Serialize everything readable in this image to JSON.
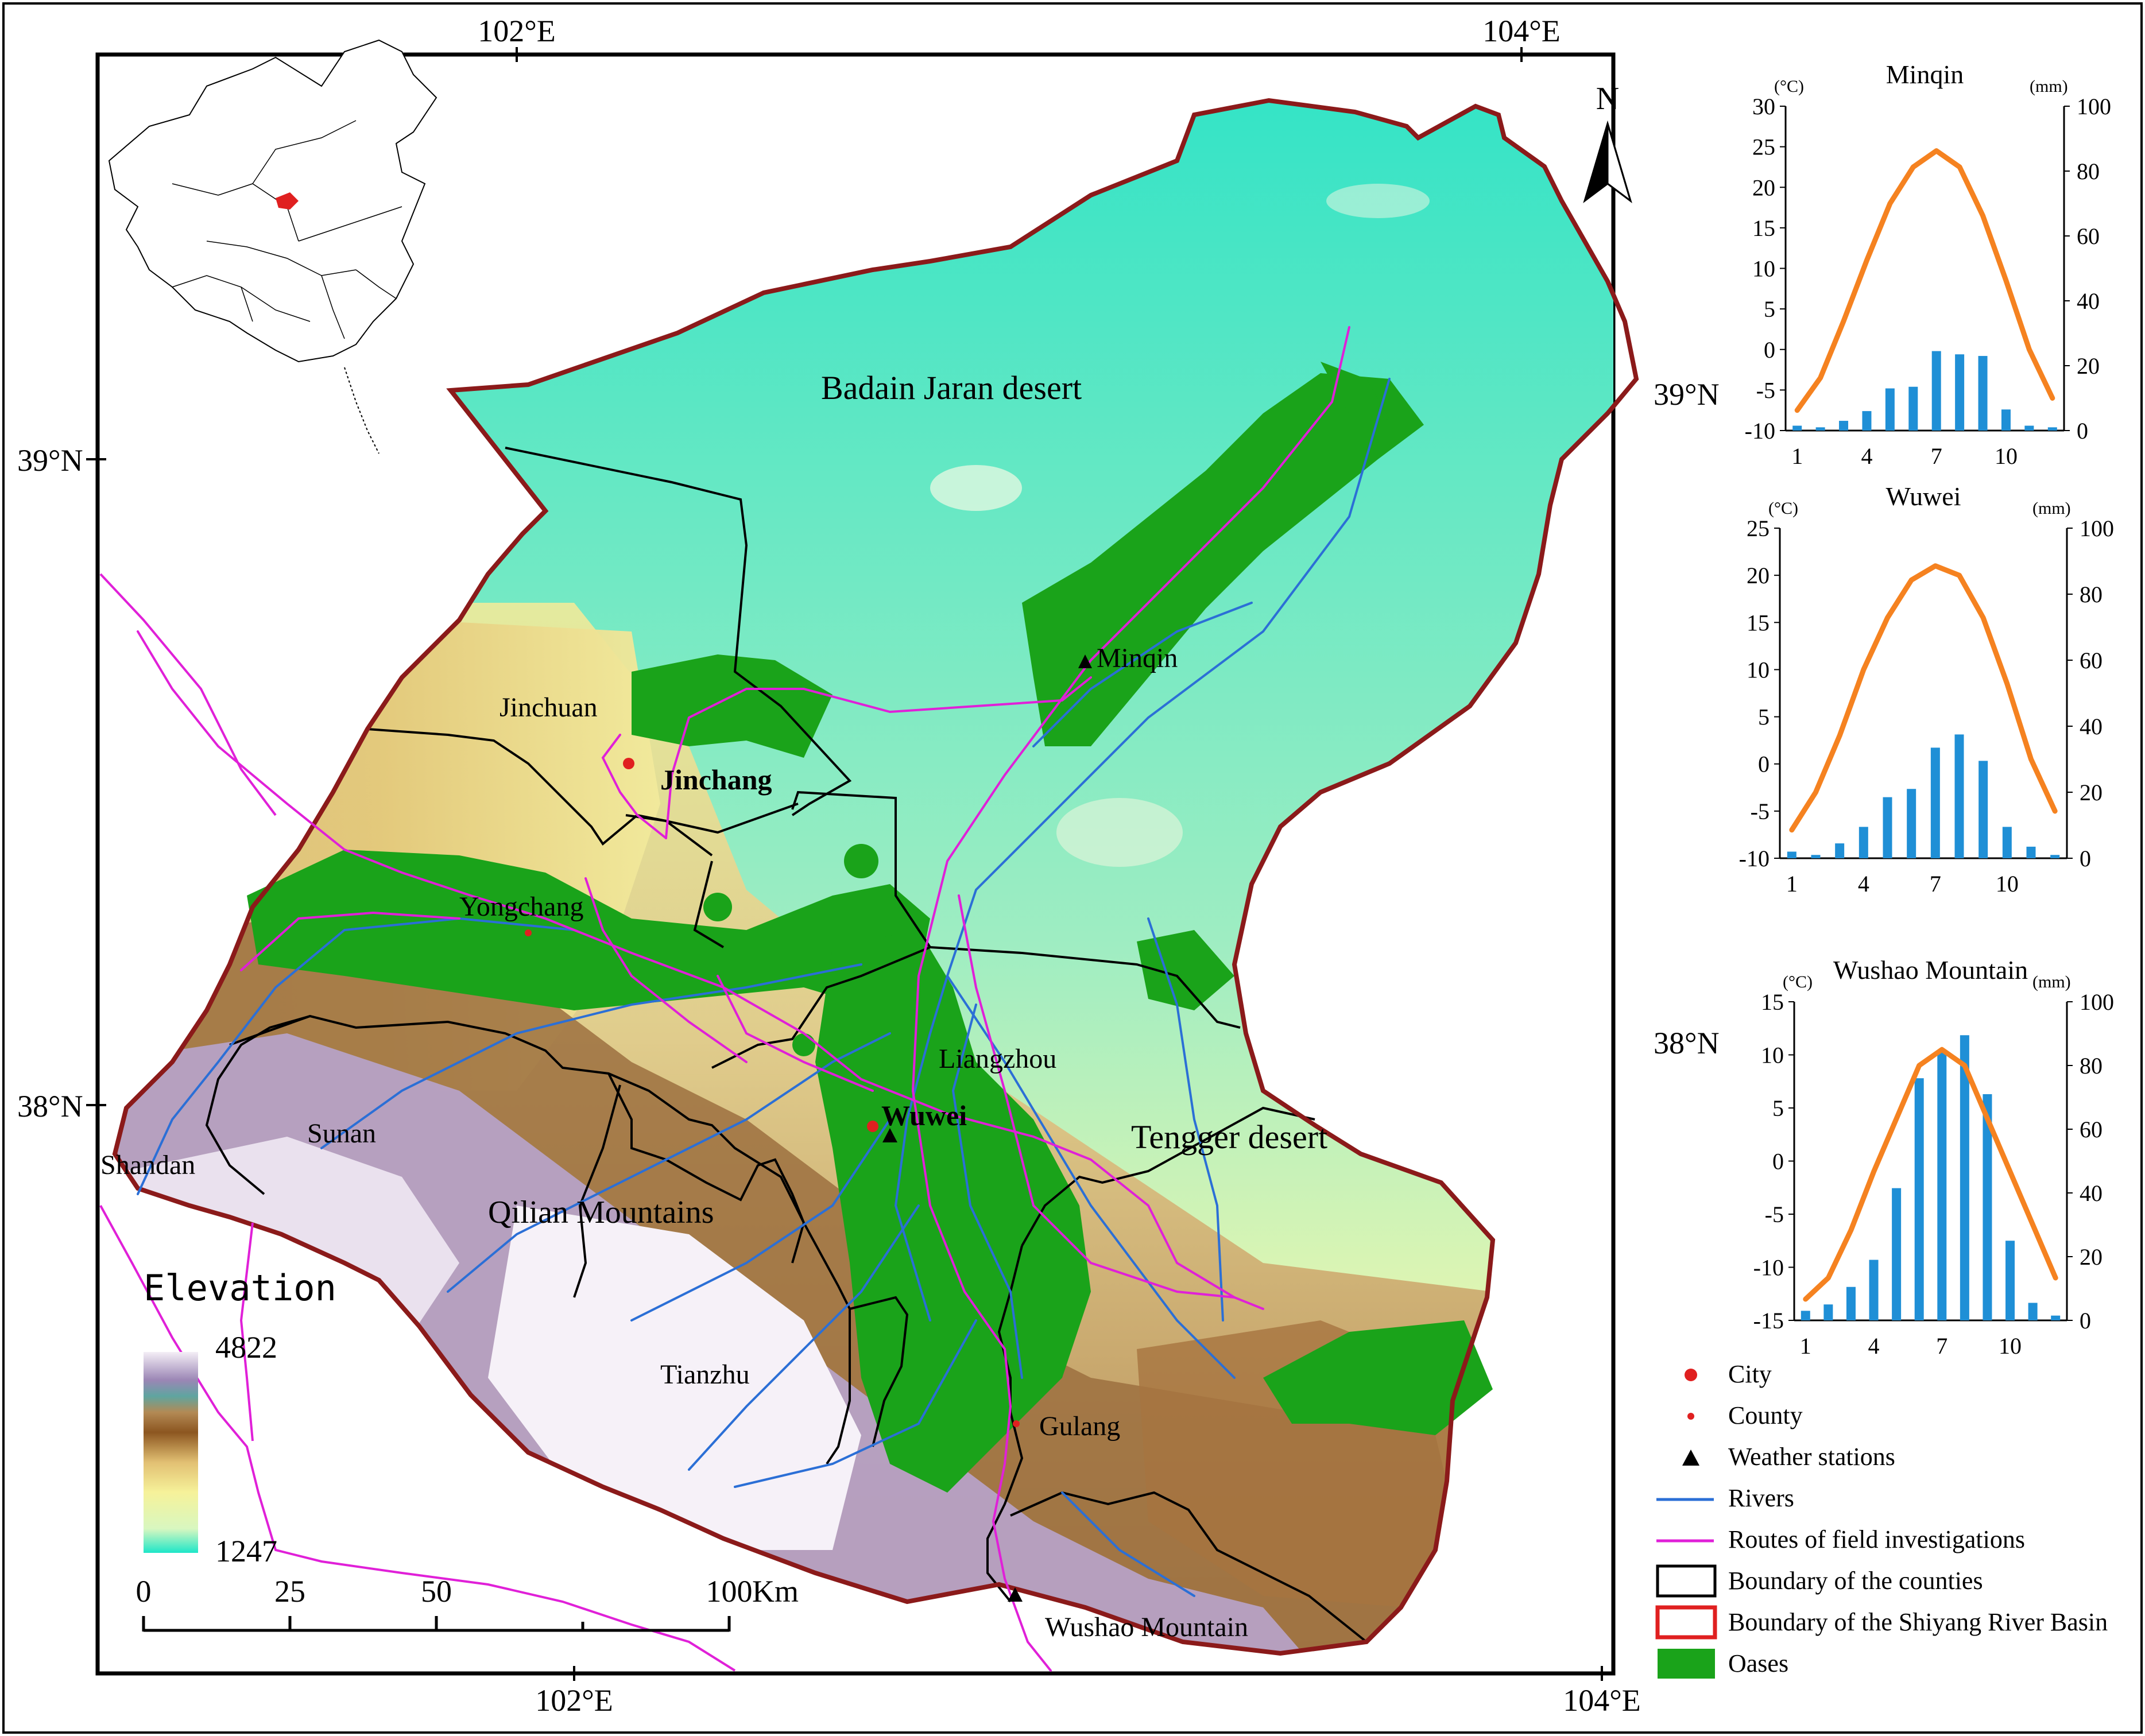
{
  "map": {
    "north_label": "N",
    "graticule": {
      "lon_labels": [
        "102°E",
        "104°E"
      ],
      "lat_labels": [
        "39°N",
        "38°N"
      ]
    },
    "place_labels": {
      "badain": "Badain Jaran desert",
      "tengger": "Tengger desert",
      "qilian": "Qilian Mountains",
      "minqin": "Minqin",
      "jinchuan": "Jinchuan",
      "jinchang": "Jinchang",
      "yongchang": "Yongchang",
      "liangzhou": "Liangzhou",
      "wuwei": "Wuwei",
      "sunan": "Sunan",
      "shandan": "Shandan",
      "tianzhu": "Tianzhu",
      "gulang": "Gulang",
      "wushao": "Wushao Mountain"
    },
    "elevation": {
      "title": "Elevation",
      "max": "4822",
      "min": "1247"
    },
    "scale_bar": {
      "ticks": [
        "0",
        "25",
        "50",
        "100"
      ],
      "unit": "Km"
    },
    "colors": {
      "basin_boundary": "#8b1a1a",
      "oases": "#1aa31a",
      "rivers": "#2b6fd6",
      "routes": "#e020d8",
      "city": "#e02020"
    }
  },
  "climate": {
    "left_unit": "(°C)",
    "right_unit": "(mm)",
    "months": [
      1,
      2,
      3,
      4,
      5,
      6,
      7,
      8,
      9,
      10,
      11,
      12
    ],
    "x_ticks": [
      "1",
      "4",
      "7",
      "10"
    ],
    "stations": [
      {
        "name": "Minqin",
        "temp_range": [
          -10,
          30
        ],
        "temp_ticks": [
          "30",
          "25",
          "20",
          "15",
          "10",
          "5",
          "0",
          "-5",
          "-10"
        ],
        "precip_range": [
          0,
          100
        ],
        "precip_ticks": [
          "100",
          "80",
          "60",
          "40",
          "20",
          "0"
        ],
        "temperature": [
          -7.5,
          -3.5,
          3.5,
          11,
          18,
          22.5,
          24.5,
          22.5,
          16.5,
          8.5,
          0,
          -6
        ],
        "precipitation": [
          1.5,
          1,
          3,
          6,
          13,
          13.5,
          24.5,
          23.5,
          23,
          6.5,
          1.5,
          1
        ]
      },
      {
        "name": "Wuwei",
        "temp_range": [
          -10,
          25
        ],
        "temp_ticks": [
          "25",
          "20",
          "15",
          "10",
          "5",
          "0",
          "-5",
          "-10"
        ],
        "precip_range": [
          0,
          100
        ],
        "precip_ticks": [
          "100",
          "80",
          "60",
          "40",
          "20",
          "0"
        ],
        "temperature": [
          -7,
          -3,
          3,
          10,
          15.5,
          19.5,
          21,
          20,
          15.5,
          8.5,
          0.5,
          -5
        ],
        "precipitation": [
          2,
          1,
          4.5,
          9.5,
          18.5,
          21,
          33.5,
          37.5,
          29.5,
          9.5,
          3.5,
          1
        ]
      },
      {
        "name": "Wushao Mountain",
        "temp_range": [
          -15,
          15
        ],
        "temp_ticks": [
          "15",
          "10",
          "5",
          "0",
          "-5",
          "-10",
          "-15"
        ],
        "precip_range": [
          0,
          100
        ],
        "precip_ticks": [
          "100",
          "80",
          "60",
          "40",
          "20",
          "0"
        ],
        "temperature": [
          -13,
          -11,
          -6.5,
          -1,
          4,
          9,
          10.5,
          9,
          4,
          -1,
          -6,
          -11
        ],
        "precipitation": [
          3,
          5,
          10.5,
          19,
          41.5,
          76,
          84.5,
          89.5,
          71,
          25,
          5.5,
          1.5
        ]
      }
    ]
  },
  "legend": [
    {
      "key": "city",
      "label": "City"
    },
    {
      "key": "county",
      "label": "County"
    },
    {
      "key": "weather",
      "label": "Weather stations"
    },
    {
      "key": "rivers",
      "label": "Rivers"
    },
    {
      "key": "routes",
      "label": "Routes of field investigations"
    },
    {
      "key": "counties",
      "label": "Boundary of the counties"
    },
    {
      "key": "basin",
      "label": "Boundary of the Shiyang River Basin"
    },
    {
      "key": "oases",
      "label": "Oases"
    }
  ]
}
